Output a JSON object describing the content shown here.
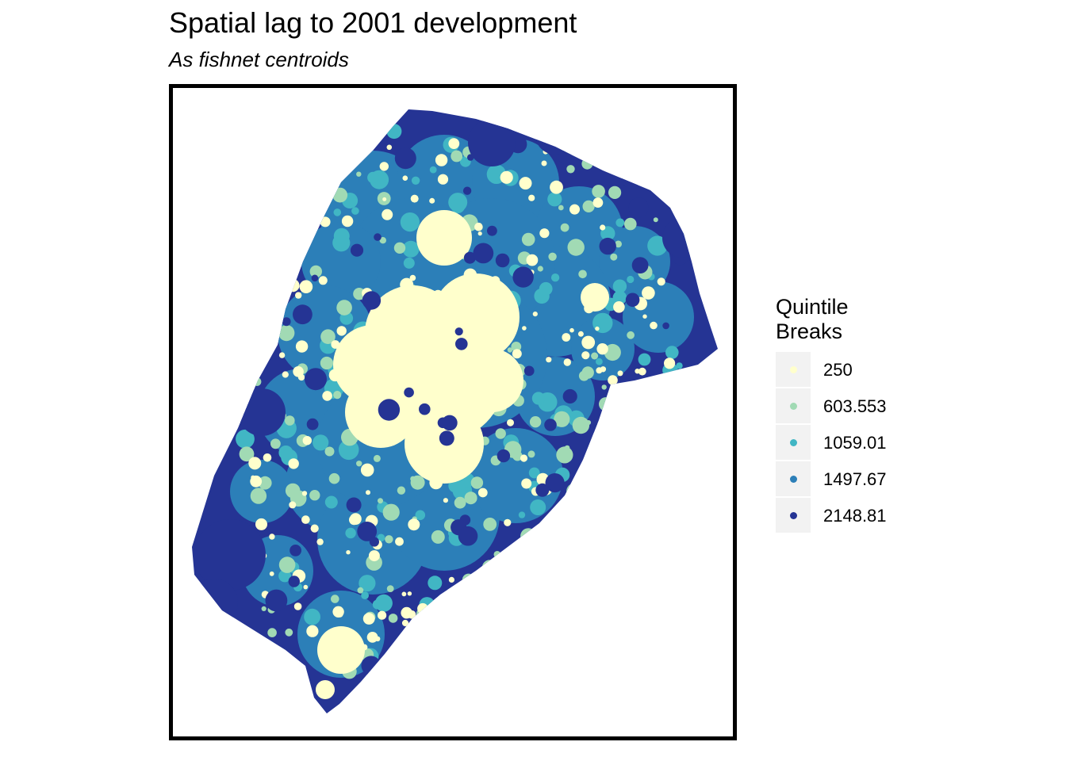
{
  "title": "Spatial lag to 2001 development",
  "subtitle": "As fishnet centroids",
  "legend": {
    "title_line1": "Quintile",
    "title_line2": "Breaks",
    "items": [
      {
        "label": "250",
        "color": "#ffffcc"
      },
      {
        "label": "603.553",
        "color": "#a1dab4"
      },
      {
        "label": "1059.01",
        "color": "#41b6c4"
      },
      {
        "label": "1497.67",
        "color": "#2c7fb8"
      },
      {
        "label": "2148.81",
        "color": "#253494"
      }
    ]
  },
  "colors": {
    "outline": "#000000",
    "class1": "#ffffcc",
    "class2": "#a1dab4",
    "class3": "#41b6c4",
    "class4": "#2c7fb8",
    "class5": "#253494"
  }
}
